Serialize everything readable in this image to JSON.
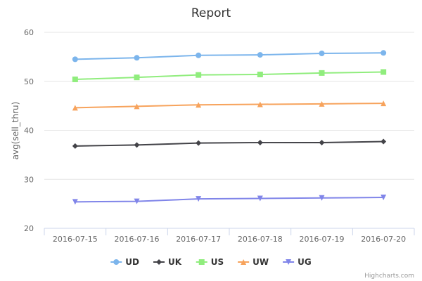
{
  "chart_data": {
    "type": "line",
    "title": "Report",
    "ylabel": "avg(sell_thru)",
    "xlabel": "",
    "categories": [
      "2016-07-15",
      "2016-07-16",
      "2016-07-17",
      "2016-07-18",
      "2016-07-19",
      "2016-07-20"
    ],
    "ylim": [
      20,
      60
    ],
    "yticks": [
      20,
      30,
      40,
      50,
      60
    ],
    "grid": true,
    "legend_position": "bottom-center",
    "series": [
      {
        "name": "UD",
        "color": "#7cb5ec",
        "marker": "circle",
        "values": [
          54.5,
          54.8,
          55.3,
          55.4,
          55.7,
          55.8
        ]
      },
      {
        "name": "UK",
        "color": "#434348",
        "marker": "diamond",
        "values": [
          36.8,
          37.0,
          37.4,
          37.5,
          37.5,
          37.7
        ]
      },
      {
        "name": "US",
        "color": "#90ed7d",
        "marker": "square",
        "values": [
          50.4,
          50.8,
          51.3,
          51.4,
          51.7,
          51.9
        ]
      },
      {
        "name": "UW",
        "color": "#f7a35c",
        "marker": "triangle",
        "values": [
          44.6,
          44.9,
          45.2,
          45.3,
          45.4,
          45.5
        ]
      },
      {
        "name": "UG",
        "color": "#8085e9",
        "marker": "triangle-down",
        "values": [
          25.4,
          25.5,
          26.0,
          26.1,
          26.2,
          26.3
        ]
      }
    ]
  },
  "credits": "Highcharts.com"
}
